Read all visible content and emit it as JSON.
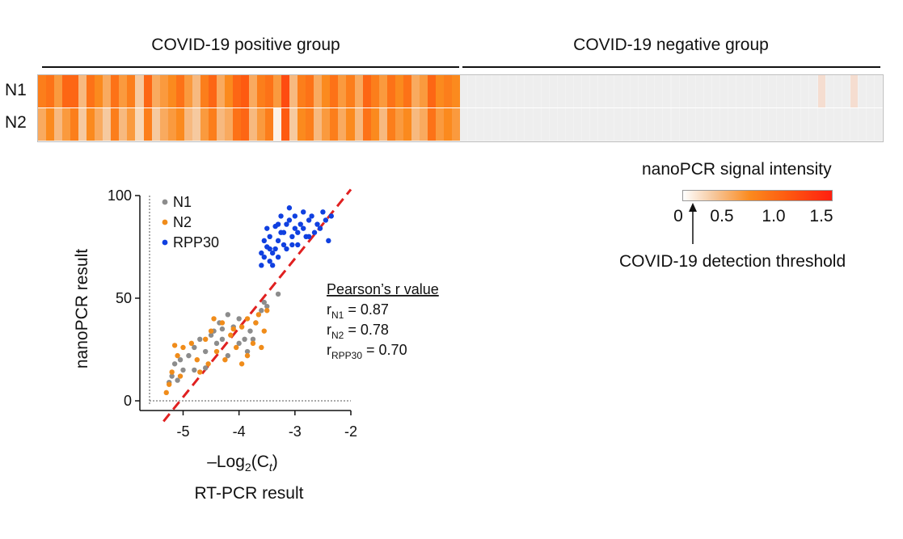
{
  "groups": [
    {
      "title": "COVID-19 positive group"
    },
    {
      "title": "COVID-19 negative group"
    }
  ],
  "row_labels": [
    "N1",
    "N2"
  ],
  "colorbar": {
    "title": "nanoPCR signal intensity",
    "ticks": [
      "0",
      "0.5",
      "1.0",
      "1.5"
    ],
    "colors": [
      "#ffffff",
      "#f6c99f",
      "#fb8a1e",
      "#fe5a10",
      "#ff1f10"
    ],
    "threshold_label": "COVID-19 detection threshold"
  },
  "heatmap": {
    "type": "heatmap",
    "rows": [
      "N1",
      "N2"
    ],
    "positive_n1": [
      0.9,
      1.0,
      0.7,
      1.1,
      1.1,
      0.5,
      1.0,
      0.8,
      0.6,
      1.0,
      0.7,
      0.9,
      0.4,
      1.1,
      0.6,
      0.7,
      0.8,
      1.0,
      0.7,
      0.5,
      0.9,
      1.1,
      0.6,
      0.8,
      1.1,
      1.2,
      0.6,
      0.9,
      1.0,
      0.7,
      1.3,
      0.5,
      0.9,
      1.0,
      0.6,
      0.8,
      1.0,
      0.7,
      0.9,
      0.6,
      1.1,
      0.9,
      0.7,
      1.0,
      0.8,
      1.0,
      0.6,
      0.7,
      1.1,
      0.8,
      0.9,
      0.8
    ],
    "positive_n2": [
      0.6,
      0.8,
      0.5,
      0.7,
      0.9,
      0.4,
      0.8,
      0.6,
      0.4,
      0.9,
      0.5,
      0.7,
      0.3,
      0.9,
      0.4,
      0.6,
      0.7,
      0.8,
      0.5,
      0.4,
      0.7,
      0.9,
      0.5,
      0.6,
      1.0,
      1.1,
      0.5,
      0.7,
      0.9,
      0.1,
      1.2,
      0.4,
      0.8,
      0.9,
      0.5,
      0.7,
      0.9,
      0.6,
      0.8,
      0.5,
      1.0,
      0.8,
      0.5,
      0.9,
      0.7,
      0.8,
      0.5,
      0.6,
      1.0,
      0.7,
      0.8,
      0.7
    ],
    "negative_n1_highlighted_columns": [
      44,
      48
    ],
    "negative_columns": 52
  },
  "scatter": {
    "type": "scatter",
    "xlabel": "–Log",
    "xlabel_sub": "2",
    "xlabel_paren": "(C",
    "xlabel_paren_sub": "t",
    "xlabel_close": ")",
    "xlabel_secondary": "RT-PCR result",
    "ylabel": "nanoPCR result",
    "xlim": [
      -5.6,
      -2
    ],
    "ylim": [
      0,
      100
    ],
    "xticks": [
      "-5",
      "-4",
      "-3",
      "-2"
    ],
    "yticks": [
      "100",
      "50",
      "0"
    ],
    "legend": [
      {
        "name": "N1",
        "color": "#8c8c8c"
      },
      {
        "name": "N2",
        "color": "#f08c1a"
      },
      {
        "name": "RPP30",
        "color": "#1040e0"
      }
    ],
    "fit_line": {
      "color": "#e02020"
    },
    "stats_title": "Pearson’s r value",
    "stats": [
      {
        "prefix": "r",
        "sub": "N1",
        "value": " = 0.87"
      },
      {
        "prefix": "r",
        "sub": "N2",
        "value": " = 0.78"
      },
      {
        "prefix": "r",
        "sub": "RPP30",
        "value": " = 0.70"
      }
    ]
  },
  "chart_data": [
    {
      "type": "heatmap",
      "title": "",
      "rows": [
        "N1",
        "N2"
      ],
      "column_groups": [
        "COVID-19 positive group",
        "COVID-19 negative group"
      ],
      "colorbar_label": "nanoPCR signal intensity",
      "colorbar_range": [
        0,
        1.6
      ],
      "threshold_label": "COVID-19 detection threshold"
    },
    {
      "type": "scatter",
      "xlim": [
        -5.6,
        -2
      ],
      "ylim": [
        0,
        100
      ],
      "series": [
        {
          "name": "N1",
          "points": [
            [
              -5.2,
              12
            ],
            [
              -5.15,
              18
            ],
            [
              -5.1,
              10
            ],
            [
              -5.05,
              20
            ],
            [
              -5.0,
              15
            ],
            [
              -4.9,
              22
            ],
            [
              -4.8,
              26
            ],
            [
              -4.7,
              30
            ],
            [
              -4.6,
              24
            ],
            [
              -4.5,
              32
            ],
            [
              -4.4,
              28
            ],
            [
              -4.35,
              38
            ],
            [
              -4.3,
              35
            ],
            [
              -4.2,
              42
            ],
            [
              -4.1,
              36
            ],
            [
              -4.0,
              40
            ],
            [
              -3.9,
              30
            ],
            [
              -3.8,
              34
            ],
            [
              -3.7,
              38
            ],
            [
              -3.6,
              44
            ],
            [
              -3.55,
              48
            ],
            [
              -3.5,
              46
            ],
            [
              -3.3,
              52
            ],
            [
              -4.8,
              15
            ],
            [
              -4.6,
              16
            ],
            [
              -4.2,
              22
            ],
            [
              -4.0,
              28
            ],
            [
              -3.85,
              24
            ],
            [
              -4.45,
              34
            ],
            [
              -5.25,
              9
            ],
            [
              -4.3,
              30
            ],
            [
              -3.75,
              30
            ]
          ]
        },
        {
          "name": "N2",
          "points": [
            [
              -5.3,
              4
            ],
            [
              -5.25,
              8
            ],
            [
              -5.2,
              14
            ],
            [
              -5.1,
              22
            ],
            [
              -5.05,
              12
            ],
            [
              -5.0,
              26
            ],
            [
              -4.85,
              28
            ],
            [
              -4.75,
              20
            ],
            [
              -4.6,
              30
            ],
            [
              -4.55,
              18
            ],
            [
              -4.5,
              34
            ],
            [
              -4.4,
              24
            ],
            [
              -4.3,
              38
            ],
            [
              -4.25,
              20
            ],
            [
              -4.15,
              32
            ],
            [
              -4.05,
              26
            ],
            [
              -3.95,
              36
            ],
            [
              -3.85,
              40
            ],
            [
              -3.75,
              28
            ],
            [
              -3.65,
              42
            ],
            [
              -3.55,
              34
            ],
            [
              -3.5,
              44
            ],
            [
              -3.6,
              26
            ],
            [
              -3.85,
              22
            ],
            [
              -4.45,
              40
            ],
            [
              -5.15,
              27
            ],
            [
              -4.7,
              14
            ],
            [
              -4.1,
              35
            ],
            [
              -3.95,
              18
            ],
            [
              -3.7,
              38
            ]
          ]
        },
        {
          "name": "RPP30",
          "points": [
            [
              -3.55,
              70
            ],
            [
              -3.5,
              75
            ],
            [
              -3.45,
              80
            ],
            [
              -3.4,
              72
            ],
            [
              -3.35,
              85
            ],
            [
              -3.3,
              78
            ],
            [
              -3.25,
              90
            ],
            [
              -3.2,
              82
            ],
            [
              -3.15,
              74
            ],
            [
              -3.1,
              88
            ],
            [
              -3.05,
              80
            ],
            [
              -3.0,
              84
            ],
            [
              -2.95,
              76
            ],
            [
              -2.9,
              86
            ],
            [
              -2.85,
              92
            ],
            [
              -2.8,
              80
            ],
            [
              -2.75,
              88
            ],
            [
              -2.7,
              90
            ],
            [
              -2.6,
              86
            ],
            [
              -2.5,
              92
            ],
            [
              -2.45,
              88
            ],
            [
              -2.4,
              78
            ],
            [
              -2.35,
              90
            ],
            [
              -3.6,
              66
            ],
            [
              -3.55,
              78
            ],
            [
              -3.45,
              68
            ],
            [
              -3.35,
              74
            ],
            [
              -3.25,
              82
            ],
            [
              -3.15,
              86
            ],
            [
              -3.05,
              76
            ],
            [
              -2.95,
              82
            ],
            [
              -3.4,
              66
            ],
            [
              -3.3,
              70
            ],
            [
              -3.2,
              76
            ],
            [
              -3.0,
              90
            ],
            [
              -2.85,
              84
            ],
            [
              -2.65,
              82
            ],
            [
              -3.5,
              84
            ],
            [
              -3.1,
              94
            ],
            [
              -2.55,
              84
            ],
            [
              -3.3,
              86
            ],
            [
              -2.75,
              80
            ],
            [
              -3.45,
              74
            ],
            [
              -3.6,
              72
            ]
          ]
        }
      ]
    }
  ]
}
